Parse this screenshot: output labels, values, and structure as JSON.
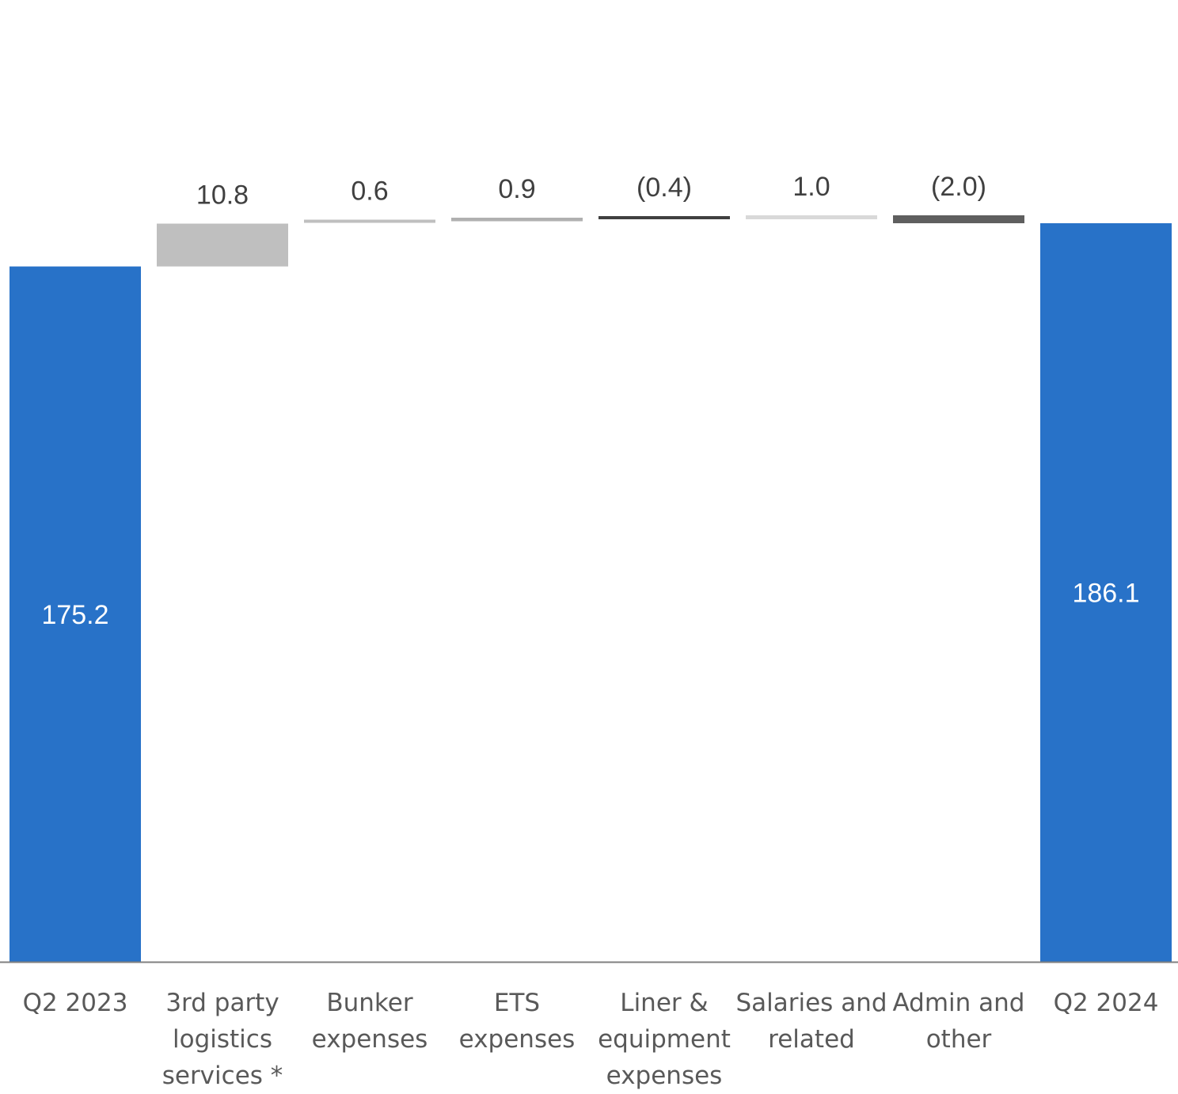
{
  "chart_data": {
    "type": "waterfall",
    "title": "",
    "xlabel": "",
    "ylabel": "",
    "ylim": [
      0,
      186.1
    ],
    "grid": false,
    "legend": "none",
    "categories": [
      [
        "Q2 2023"
      ],
      [
        "3rd party",
        "logistics",
        "services *"
      ],
      [
        "Bunker",
        "expenses"
      ],
      [
        "ETS",
        "expenses"
      ],
      [
        "Liner &",
        "equipment",
        "expenses"
      ],
      [
        "Salaries and",
        "related"
      ],
      [
        "Admin and",
        "other"
      ],
      [
        "Q2 2024"
      ]
    ],
    "steps": [
      {
        "kind": "total",
        "value": 175.2,
        "label": "175.2",
        "color": "#2872C8"
      },
      {
        "kind": "delta",
        "value": 10.8,
        "label": "10.8",
        "color": "#BFBFBF"
      },
      {
        "kind": "delta",
        "value": 0.6,
        "label": "0.6",
        "color": "#BFBFBF"
      },
      {
        "kind": "delta",
        "value": 0.9,
        "label": "0.9",
        "color": "#B0B0B0"
      },
      {
        "kind": "delta",
        "value": -0.4,
        "label": "(0.4)",
        "color": "#404040"
      },
      {
        "kind": "delta",
        "value": 1.0,
        "label": "1.0",
        "color": "#D9D9D9"
      },
      {
        "kind": "delta",
        "value": -2.0,
        "label": "(2.0)",
        "color": "#5F5F5F"
      },
      {
        "kind": "total",
        "value": 186.1,
        "label": "186.1",
        "color": "#2872C8"
      }
    ],
    "axis_color": "#808080"
  }
}
